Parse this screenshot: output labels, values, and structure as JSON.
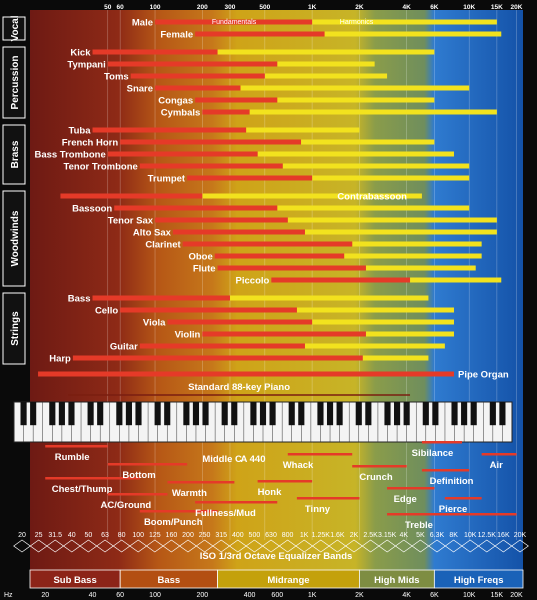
{
  "chart_data": {
    "type": "bar",
    "scale": "log",
    "xlim": [
      16,
      22000
    ],
    "axis_unit_label": "Hz",
    "top_ticks": [
      "50",
      "60",
      "100",
      "200",
      "300",
      "500",
      "1K",
      "2K",
      "4K",
      "6K",
      "10K",
      "15K",
      "20K"
    ],
    "bottom_ticks": [
      {
        "label": "20",
        "hz": 20
      },
      {
        "label": "40",
        "hz": 40
      },
      {
        "label": "60",
        "hz": 60
      },
      {
        "label": "100",
        "hz": 100
      },
      {
        "label": "200",
        "hz": 200
      },
      {
        "label": "400",
        "hz": 400
      },
      {
        "label": "600",
        "hz": 600
      },
      {
        "label": "1K",
        "hz": 1000
      },
      {
        "label": "2K",
        "hz": 2000
      },
      {
        "label": "4K",
        "hz": 4000
      },
      {
        "label": "6K",
        "hz": 6000
      },
      {
        "label": "10K",
        "hz": 10000
      },
      {
        "label": "15K",
        "hz": 15000
      },
      {
        "label": "20K",
        "hz": 20000
      }
    ],
    "iso_bands": [
      "20",
      "25",
      "31.5",
      "40",
      "50",
      "63",
      "80",
      "100",
      "125",
      "160",
      "200",
      "250",
      "315",
      "400",
      "500",
      "630",
      "800",
      "1K",
      "1.25K",
      "1.6K",
      "2K",
      "2.5K",
      "3.15K",
      "4K",
      "5K",
      "6.3K",
      "8K",
      "10K",
      "12.5K",
      "16K",
      "20K"
    ],
    "iso_title": "ISO 1/3rd Octave Equalizer Bands",
    "fundamentals_label": "Fundamentals",
    "harmonics_label": "Harmonics",
    "groups": [
      {
        "name": "Vocal",
        "instruments": [
          "Male",
          "Female"
        ]
      },
      {
        "name": "Percussion",
        "instruments": [
          "Kick",
          "Tympani",
          "Toms",
          "Snare",
          "Congas",
          "Cymbals"
        ]
      },
      {
        "name": "Brass",
        "instruments": [
          "Tuba",
          "French Horn",
          "Bass Trombone",
          "Tenor Trombone",
          "Trumpet"
        ]
      },
      {
        "name": "Woodwinds",
        "instruments": [
          "Contrabassoon",
          "Bassoon",
          "Tenor Sax",
          "Alto Sax",
          "Clarinet",
          "Oboe",
          "Flute",
          "Piccolo"
        ]
      },
      {
        "name": "Strings",
        "instruments": [
          "Bass",
          "Cello",
          "Viola",
          "Violin",
          "Guitar",
          "Harp"
        ]
      }
    ],
    "instruments": [
      {
        "name": "Male",
        "fund": [
          100,
          1000
        ],
        "harm": [
          1000,
          15000
        ],
        "label_pos": "left"
      },
      {
        "name": "Female",
        "fund": [
          180,
          1200
        ],
        "harm": [
          1200,
          16000
        ],
        "label_pos": "left"
      },
      {
        "name": "Kick",
        "fund": [
          40,
          250
        ],
        "harm": [
          250,
          6000
        ],
        "label_pos": "left"
      },
      {
        "name": "Tympani",
        "fund": [
          50,
          600
        ],
        "harm": [
          600,
          2500
        ],
        "label_pos": "left"
      },
      {
        "name": "Toms",
        "fund": [
          70,
          500
        ],
        "harm": [
          500,
          3000
        ],
        "label_pos": "left"
      },
      {
        "name": "Snare",
        "fund": [
          100,
          350
        ],
        "harm": [
          350,
          10000
        ],
        "label_pos": "left"
      },
      {
        "name": "Congas",
        "fund": [
          180,
          600
        ],
        "harm": [
          600,
          6000
        ],
        "label_pos": "left"
      },
      {
        "name": "Cymbals",
        "fund": [
          200,
          400
        ],
        "harm": [
          400,
          15000
        ],
        "label_pos": "left"
      },
      {
        "name": "Tuba",
        "fund": [
          40,
          380
        ],
        "harm": [
          380,
          2000
        ],
        "label_pos": "left"
      },
      {
        "name": "French Horn",
        "fund": [
          60,
          850
        ],
        "harm": [
          850,
          6000
        ],
        "label_pos": "left"
      },
      {
        "name": "Bass Trombone",
        "fund": [
          50,
          450
        ],
        "harm": [
          450,
          8000
        ],
        "label_pos": "left"
      },
      {
        "name": "Tenor Trombone",
        "fund": [
          80,
          650
        ],
        "harm": [
          650,
          10000
        ],
        "label_pos": "left"
      },
      {
        "name": "Trumpet",
        "fund": [
          160,
          1000
        ],
        "harm": [
          1000,
          10000
        ],
        "label_pos": "left"
      },
      {
        "name": "Contrabassoon",
        "fund": [
          25,
          200
        ],
        "harm": [
          200,
          5000
        ],
        "label_pos": "right"
      },
      {
        "name": "Bassoon",
        "fund": [
          55,
          600
        ],
        "harm": [
          600,
          10000
        ],
        "label_pos": "left"
      },
      {
        "name": "Tenor Sax",
        "fund": [
          100,
          700
        ],
        "harm": [
          700,
          15000
        ],
        "label_pos": "left"
      },
      {
        "name": "Alto Sax",
        "fund": [
          130,
          900
        ],
        "harm": [
          900,
          15000
        ],
        "label_pos": "left"
      },
      {
        "name": "Clarinet",
        "fund": [
          150,
          1800
        ],
        "harm": [
          1800,
          12000
        ],
        "label_pos": "left"
      },
      {
        "name": "Oboe",
        "fund": [
          240,
          1600
        ],
        "harm": [
          1600,
          12000
        ],
        "label_pos": "left"
      },
      {
        "name": "Flute",
        "fund": [
          250,
          2200
        ],
        "harm": [
          2200,
          11000
        ],
        "label_pos": "left"
      },
      {
        "name": "Piccolo",
        "fund": [
          550,
          4200
        ],
        "harm": [
          4200,
          16000
        ],
        "label_pos": "left"
      },
      {
        "name": "Bass",
        "fund": [
          40,
          300
        ],
        "harm": [
          300,
          5500
        ],
        "label_pos": "left"
      },
      {
        "name": "Cello",
        "fund": [
          60,
          800
        ],
        "harm": [
          800,
          8000
        ],
        "label_pos": "left"
      },
      {
        "name": "Viola",
        "fund": [
          120,
          1000
        ],
        "harm": [
          1000,
          8000
        ],
        "label_pos": "left"
      },
      {
        "name": "Violin",
        "fund": [
          200,
          2200
        ],
        "harm": [
          2200,
          8000
        ],
        "label_pos": "left"
      },
      {
        "name": "Guitar",
        "fund": [
          80,
          900
        ],
        "harm": [
          900,
          7000
        ],
        "label_pos": "left"
      },
      {
        "name": "Harp",
        "fund": [
          30,
          2100
        ],
        "harm": [
          2100,
          5500
        ],
        "label_pos": "left"
      },
      {
        "name": "Pipe Organ",
        "fund": [
          18,
          8000
        ],
        "harm": null,
        "label_pos": "right"
      }
    ],
    "piano": {
      "label": "Standard 88-key Piano",
      "fund": [
        28,
        4200
      ]
    },
    "annotations": [
      {
        "label": "Rumble",
        "hz": [
          20,
          50
        ]
      },
      {
        "label": "Chest/Thump",
        "hz": [
          20,
          80
        ]
      },
      {
        "label": "Bottom",
        "hz": [
          50,
          160
        ]
      },
      {
        "label": "AC/Ground",
        "hz": [
          50,
          120
        ]
      },
      {
        "label": "Boom/Punch",
        "hz": [
          80,
          250
        ]
      },
      {
        "label": "Warmth",
        "hz": [
          120,
          320
        ]
      },
      {
        "label": "Fullness/Mud",
        "hz": [
          180,
          600
        ]
      },
      {
        "label": "Middle C",
        "hz": [
          262,
          262
        ]
      },
      {
        "label": "A 440",
        "hz": [
          440,
          440
        ]
      },
      {
        "label": "Honk",
        "hz": [
          450,
          1000
        ]
      },
      {
        "label": "Whack",
        "hz": [
          700,
          1800
        ]
      },
      {
        "label": "Tinny",
        "hz": [
          800,
          2000
        ]
      },
      {
        "label": "Crunch",
        "hz": [
          1800,
          4000
        ]
      },
      {
        "label": "Edge",
        "hz": [
          3000,
          6000
        ]
      },
      {
        "label": "Sibilance",
        "hz": [
          5000,
          9000
        ]
      },
      {
        "label": "Definition",
        "hz": [
          5000,
          10000
        ]
      },
      {
        "label": "Pierce",
        "hz": [
          7000,
          12000
        ]
      },
      {
        "label": "Air",
        "hz": [
          12000,
          20000
        ]
      },
      {
        "label": "Treble",
        "hz": [
          3000,
          20000
        ]
      }
    ],
    "regions": [
      {
        "label": "Sub Bass",
        "hz": [
          16,
          60
        ],
        "color": "#8c2418"
      },
      {
        "label": "Bass",
        "hz": [
          60,
          250
        ],
        "color": "#b34f12"
      },
      {
        "label": "Midrange",
        "hz": [
          250,
          2000
        ],
        "color": "#c4a10c"
      },
      {
        "label": "High Mids",
        "hz": [
          2000,
          6000
        ],
        "color": "#7e8d42"
      },
      {
        "label": "High Freqs",
        "hz": [
          6000,
          22000
        ],
        "color": "#1a62b8"
      }
    ],
    "colors": {
      "fundamental": "#e53a28",
      "harmonic": "#f2e21e",
      "bass_band": "#c8661a",
      "mid_band": "#d6b814",
      "air_band": "#2a7fd6"
    }
  }
}
